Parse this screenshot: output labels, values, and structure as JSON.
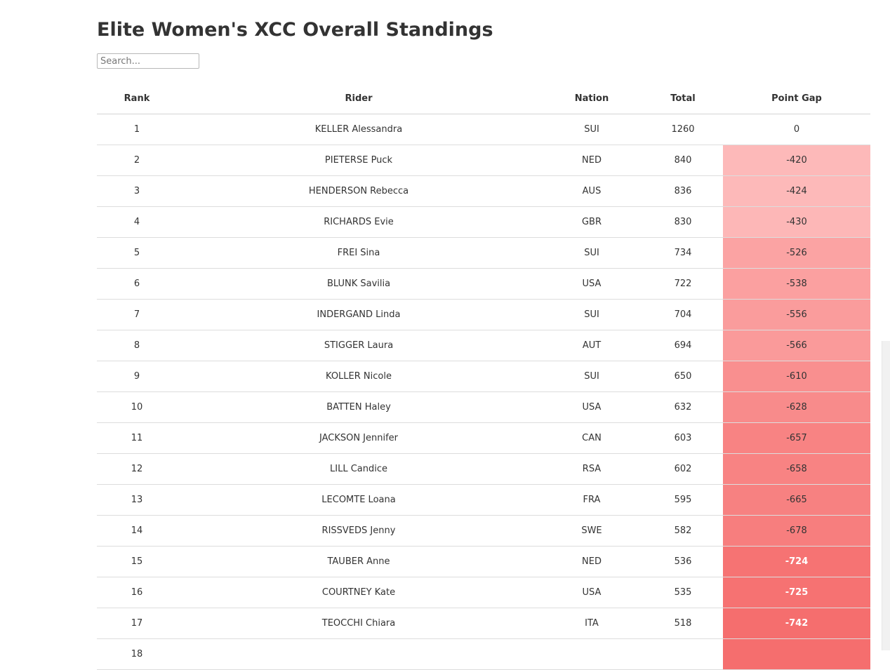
{
  "page": {
    "title": "Elite Women's XCC Overall Standings",
    "search_placeholder": "Search..."
  },
  "table": {
    "columns": [
      "Rank",
      "Rider",
      "Nation",
      "Total",
      "Point Gap"
    ],
    "rows": [
      {
        "rank": "1",
        "rider": "KELLER Alessandra",
        "nation": "SUI",
        "total": "1260",
        "gap": "0"
      },
      {
        "rank": "2",
        "rider": "PIETERSE Puck",
        "nation": "NED",
        "total": "840",
        "gap": "-420"
      },
      {
        "rank": "3",
        "rider": "HENDERSON Rebecca",
        "nation": "AUS",
        "total": "836",
        "gap": "-424"
      },
      {
        "rank": "4",
        "rider": "RICHARDS Evie",
        "nation": "GBR",
        "total": "830",
        "gap": "-430"
      },
      {
        "rank": "5",
        "rider": "FREI Sina",
        "nation": "SUI",
        "total": "734",
        "gap": "-526"
      },
      {
        "rank": "6",
        "rider": "BLUNK Savilia",
        "nation": "USA",
        "total": "722",
        "gap": "-538"
      },
      {
        "rank": "7",
        "rider": "INDERGAND Linda",
        "nation": "SUI",
        "total": "704",
        "gap": "-556"
      },
      {
        "rank": "8",
        "rider": "STIGGER Laura",
        "nation": "AUT",
        "total": "694",
        "gap": "-566"
      },
      {
        "rank": "9",
        "rider": "KOLLER Nicole",
        "nation": "SUI",
        "total": "650",
        "gap": "-610"
      },
      {
        "rank": "10",
        "rider": "BATTEN Haley",
        "nation": "USA",
        "total": "632",
        "gap": "-628"
      },
      {
        "rank": "11",
        "rider": "JACKSON Jennifer",
        "nation": "CAN",
        "total": "603",
        "gap": "-657"
      },
      {
        "rank": "12",
        "rider": "LILL Candice",
        "nation": "RSA",
        "total": "602",
        "gap": "-658"
      },
      {
        "rank": "13",
        "rider": "LECOMTE Loana",
        "nation": "FRA",
        "total": "595",
        "gap": "-665"
      },
      {
        "rank": "14",
        "rider": "RISSVEDS Jenny",
        "nation": "SWE",
        "total": "582",
        "gap": "-678"
      },
      {
        "rank": "15",
        "rider": "TAUBER Anne",
        "nation": "NED",
        "total": "536",
        "gap": "-724"
      },
      {
        "rank": "16",
        "rider": "COURTNEY Kate",
        "nation": "USA",
        "total": "535",
        "gap": "-725"
      },
      {
        "rank": "17",
        "rider": "TEOCCHI Chiara",
        "nation": "ITA",
        "total": "518",
        "gap": "-742"
      },
      {
        "rank": "18",
        "rider": "",
        "nation": "",
        "total": "",
        "gap": ""
      }
    ]
  },
  "colors": {
    "gap_light": "#fdbcbc",
    "gap_mid": "#fa9898",
    "gap_strong": "#f56e6e",
    "text": "#333333"
  }
}
